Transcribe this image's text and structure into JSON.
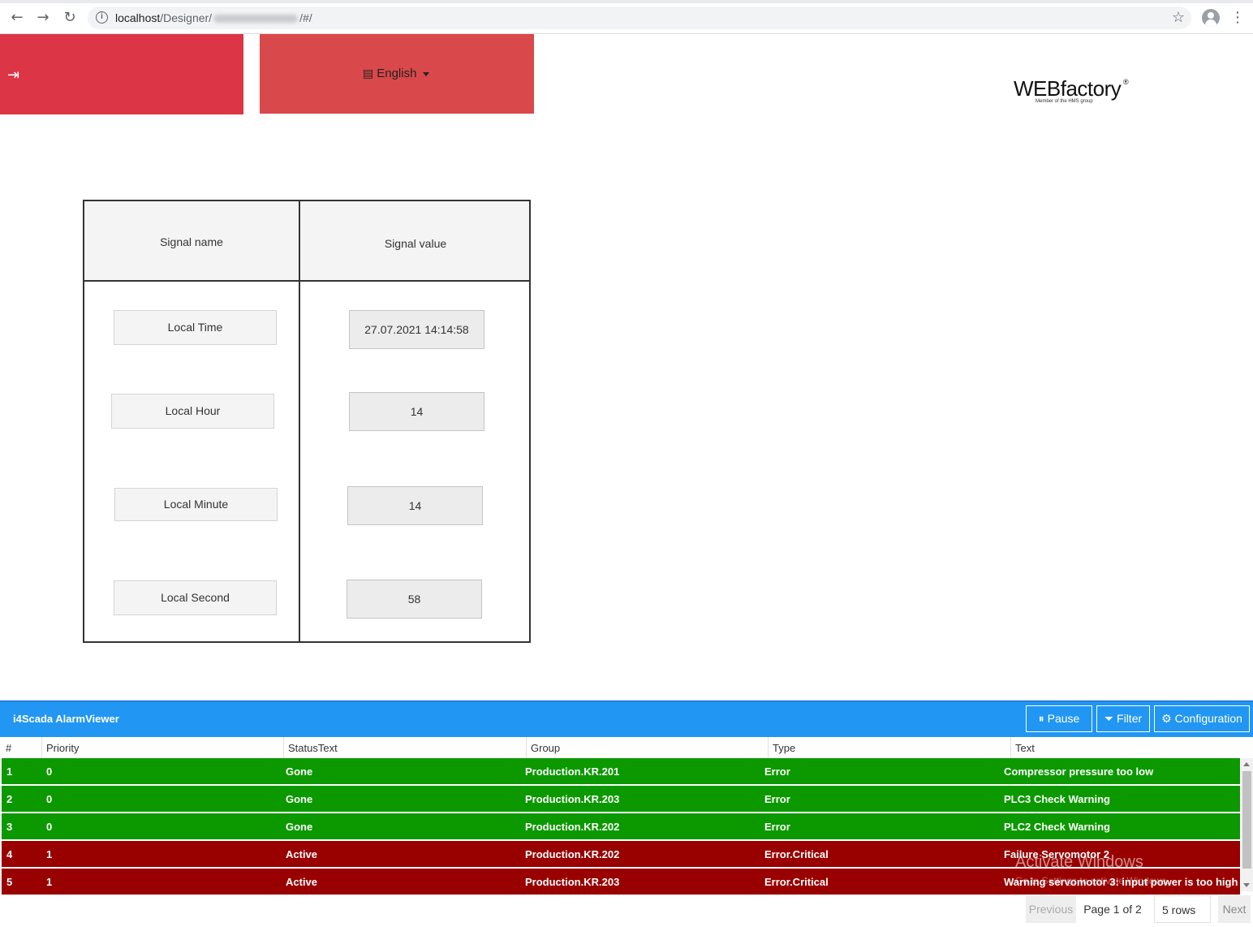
{
  "browser": {
    "url_host": "localhost",
    "url_path": "/Designer/",
    "url_suffix": "/#/"
  },
  "header": {
    "language_label": "English"
  },
  "signal_table": {
    "col_name_header": "Signal name",
    "col_value_header": "Signal value",
    "rows": [
      {
        "name": "Local Time",
        "value": "27.07.2021 14:14:58"
      },
      {
        "name": "Local Hour",
        "value": "14"
      },
      {
        "name": "Local Minute",
        "value": "14"
      },
      {
        "name": "Local Second",
        "value": "58"
      }
    ]
  },
  "alarm_viewer": {
    "title": "i4Scada AlarmViewer",
    "pause_label": "Pause",
    "filter_label": "Filter",
    "configuration_label": "Configuration",
    "columns": [
      "#",
      "Priority",
      "StatusText",
      "Group",
      "Type",
      "Text"
    ],
    "rows": [
      {
        "num": "1",
        "priority": "0",
        "status": "Gone",
        "group": "Production.KR.201",
        "type": "Error",
        "text": "Compressor pressure too low",
        "color": "#0c9900"
      },
      {
        "num": "2",
        "priority": "0",
        "status": "Gone",
        "group": "Production.KR.203",
        "type": "Error",
        "text": "PLC3 Check Warning",
        "color": "#0c9900"
      },
      {
        "num": "3",
        "priority": "0",
        "status": "Gone",
        "group": "Production.KR.202",
        "type": "Error",
        "text": "PLC2 Check Warning",
        "color": "#0c9900"
      },
      {
        "num": "4",
        "priority": "1",
        "status": "Active",
        "group": "Production.KR.202",
        "type": "Error.Critical",
        "text": "Failure Servomotor 2",
        "color": "#990000"
      },
      {
        "num": "5",
        "priority": "1",
        "status": "Active",
        "group": "Production.KR.203",
        "type": "Error.Critical",
        "text": "Warning servomotor 3: input power is too high ...",
        "color": "#990000"
      }
    ],
    "pager": {
      "previous_label": "Previous",
      "page_text": "Page 1 of 2",
      "rows_select": "5 rows",
      "next_label": "Next"
    }
  },
  "logo": {
    "name": "WEBfactory",
    "tagline": "Member of the HMS group"
  },
  "os_watermark": {
    "title": "Activate Windows",
    "subtitle": "Go to Settings to activate Windows."
  }
}
